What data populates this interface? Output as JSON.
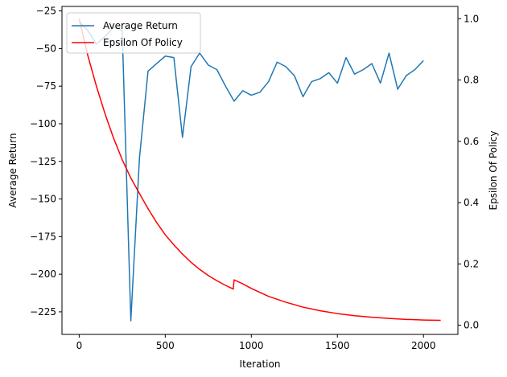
{
  "chart_data": {
    "type": "line",
    "title": "",
    "xlabel": "Iteration",
    "ylabel": "Average Return",
    "ylabel_right": "Epsilon Of Policy",
    "xlim": [
      -100,
      2200
    ],
    "ylim": [
      -240,
      -22
    ],
    "ylim_right": [
      -0.03,
      1.04
    ],
    "x_ticks": [
      0,
      500,
      1000,
      1500,
      2000
    ],
    "y_ticks": [
      -225,
      -200,
      -175,
      -150,
      -125,
      -100,
      -75,
      -50,
      -25
    ],
    "y_ticks_right": [
      0.0,
      0.2,
      0.4,
      0.6,
      0.8,
      1.0
    ],
    "grid": false,
    "legend_position": "top-left",
    "series": [
      {
        "name": "Average Return",
        "axis": "left",
        "color": "#1f77b4",
        "x": [
          0,
          50,
          100,
          150,
          200,
          250,
          300,
          350,
          400,
          450,
          500,
          550,
          600,
          650,
          700,
          750,
          800,
          850,
          900,
          950,
          1000,
          1050,
          1100,
          1150,
          1200,
          1250,
          1300,
          1350,
          1400,
          1450,
          1500,
          1550,
          1600,
          1650,
          1700,
          1750,
          1800,
          1850,
          1900,
          1950,
          2000
        ],
        "y": [
          -32,
          -38,
          -47,
          -42,
          -36,
          -38,
          -231,
          -123,
          -65,
          -60,
          -55,
          -56,
          -109,
          -62,
          -53,
          -61,
          -64,
          -75,
          -85,
          -78,
          -81,
          -79,
          -72,
          -59,
          -62,
          -68,
          -82,
          -72,
          -70,
          -66,
          -73,
          -56,
          -67,
          -64,
          -60,
          -73,
          -53,
          -77,
          -68,
          -64,
          -58
        ]
      },
      {
        "name": "Epsilon Of Policy",
        "axis": "right",
        "color": "#ff0000",
        "x": [
          0,
          50,
          100,
          150,
          200,
          250,
          300,
          350,
          400,
          450,
          500,
          550,
          600,
          650,
          700,
          750,
          800,
          850,
          895,
          900,
          950,
          1000,
          1100,
          1200,
          1300,
          1400,
          1500,
          1600,
          1700,
          1800,
          1900,
          2000,
          2100
        ],
        "y": [
          1.0,
          0.88,
          0.78,
          0.69,
          0.61,
          0.54,
          0.48,
          0.43,
          0.38,
          0.335,
          0.295,
          0.262,
          0.232,
          0.205,
          0.182,
          0.162,
          0.145,
          0.13,
          0.118,
          0.148,
          0.135,
          0.12,
          0.094,
          0.075,
          0.059,
          0.047,
          0.038,
          0.031,
          0.026,
          0.022,
          0.019,
          0.017,
          0.016
        ]
      }
    ]
  }
}
